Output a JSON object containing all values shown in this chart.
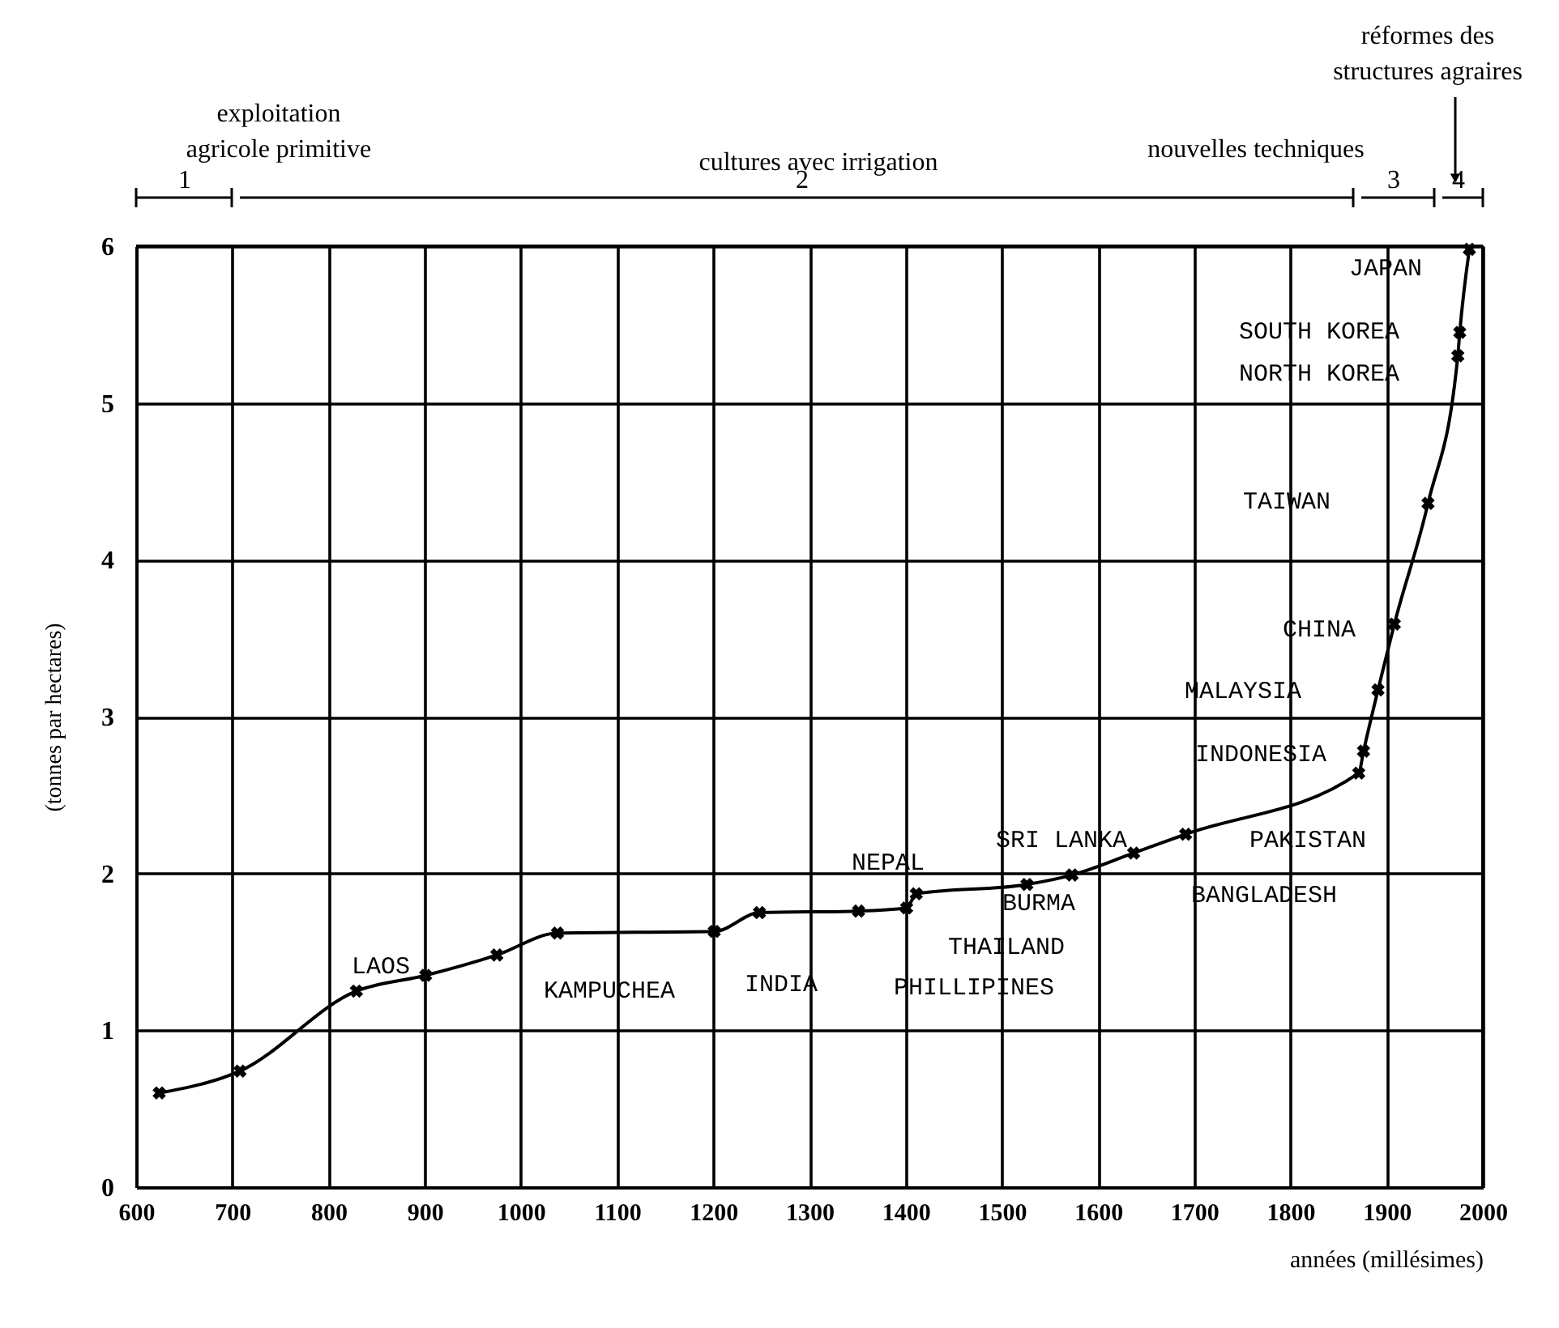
{
  "chart_data": {
    "type": "line",
    "xlabel": "années (millésimes)",
    "ylabel": "(tonnes par hectares)",
    "x": [
      624,
      708,
      829,
      901,
      975,
      1038,
      1201,
      1248,
      1351,
      1401,
      1411,
      1526,
      1573,
      1637,
      1691,
      1871,
      1876,
      1891,
      1908,
      1943,
      1974,
      1976,
      1986
    ],
    "values": [
      0.6,
      0.74,
      1.25,
      1.35,
      1.48,
      1.62,
      1.63,
      1.75,
      1.76,
      1.78,
      1.87,
      1.93,
      1.99,
      2.13,
      2.25,
      2.64,
      2.78,
      3.17,
      3.59,
      4.36,
      5.3,
      5.45,
      5.98
    ],
    "color": "#000000",
    "marker": "cross",
    "line_style": "solid",
    "grid": true,
    "xlim": [
      600,
      2000
    ],
    "xticks": [
      600,
      700,
      800,
      900,
      1000,
      1100,
      1200,
      1300,
      1400,
      1500,
      1600,
      1700,
      1800,
      1900,
      2000
    ],
    "ylim": [
      0,
      6
    ],
    "yticks": [
      0,
      1,
      2,
      3,
      4,
      5,
      6
    ],
    "annotations": [
      "exploitation\nagricole primitive",
      "cultures avec irrigation",
      "nouvelles techniques",
      "réformes des\nstructures agraires",
      "LAOS",
      "KAMPUCHEA",
      "INDIA",
      "NEPAL",
      "BURMA",
      "THAILAND",
      "PHILLIPINES",
      "SRI LANKA",
      "PAKISTAN",
      "BANGLADESH",
      "INDONESIA",
      "MALAYSIA",
      "CHINA",
      "TAIWAN",
      "NORTH KOREA",
      "SOUTH KOREA",
      "JAPAN",
      "1",
      "2",
      "3",
      "4"
    ]
  }
}
